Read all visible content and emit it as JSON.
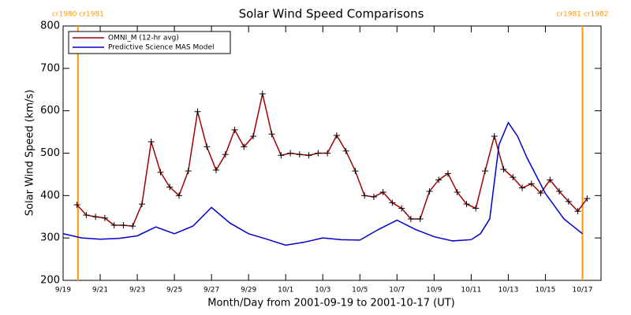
{
  "chart_data": {
    "type": "line",
    "title": "Solar Wind Speed Comparisons",
    "xlabel": "Month/Day from 2001-09-19 to 2001-10-17 (UT)",
    "ylabel": "Solar Wind Speed (km/s)",
    "xlim": [
      0,
      29
    ],
    "ylim": [
      200,
      800
    ],
    "yticks": [
      200,
      300,
      400,
      500,
      600,
      700,
      800
    ],
    "xticks": [
      {
        "value": 0,
        "label": "9/19"
      },
      {
        "value": 2,
        "label": "9/21"
      },
      {
        "value": 4,
        "label": "9/23"
      },
      {
        "value": 6,
        "label": "9/25"
      },
      {
        "value": 8,
        "label": "9/27"
      },
      {
        "value": 10,
        "label": "9/29"
      },
      {
        "value": 12,
        "label": "10/1"
      },
      {
        "value": 14,
        "label": "10/3"
      },
      {
        "value": 16,
        "label": "10/5"
      },
      {
        "value": 18,
        "label": "10/7"
      },
      {
        "value": 20,
        "label": "10/9"
      },
      {
        "value": 22,
        "label": "10/11"
      },
      {
        "value": 24,
        "label": "10/13"
      },
      {
        "value": 26,
        "label": "10/15"
      },
      {
        "value": 28,
        "label": "10/17"
      }
    ],
    "legend": "upper left",
    "annotations": [
      {
        "x": 0.8,
        "label": "cr1980 cr1981",
        "color": "#ff9900"
      },
      {
        "x": 28.0,
        "label": "cr1981 cr1982",
        "color": "#ff9900"
      }
    ],
    "series": [
      {
        "name": "OMNI_M (12-hr avg)",
        "color": "#a00000",
        "marker": "+",
        "x": [
          0.75,
          1.25,
          1.75,
          2.25,
          2.75,
          3.25,
          3.75,
          4.25,
          4.75,
          5.25,
          5.75,
          6.25,
          6.75,
          7.25,
          7.75,
          8.25,
          8.75,
          9.25,
          9.75,
          10.25,
          10.75,
          11.25,
          11.75,
          12.25,
          12.75,
          13.25,
          13.75,
          14.25,
          14.75,
          15.25,
          15.75,
          16.25,
          16.75,
          17.25,
          17.75,
          18.25,
          18.75,
          19.25,
          19.75,
          20.25,
          20.75,
          21.25,
          21.75,
          22.25,
          22.75,
          23.25,
          23.75,
          24.25,
          24.75,
          25.25,
          25.75,
          26.25,
          26.75,
          27.25,
          27.75,
          28.25
        ],
        "values": [
          378,
          354,
          350,
          347,
          330,
          330,
          328,
          380,
          527,
          455,
          420,
          400,
          458,
          598,
          515,
          460,
          497,
          555,
          515,
          540,
          640,
          545,
          495,
          500,
          497,
          495,
          500,
          500,
          542,
          505,
          458,
          400,
          397,
          408,
          383,
          370,
          345,
          345,
          410,
          437,
          452,
          408,
          380,
          370,
          458,
          540,
          462,
          443,
          418,
          428,
          406,
          437,
          410,
          386,
          363,
          393
        ]
      },
      {
        "name": "Predictive Science MAS Model",
        "color": "#0000cc",
        "x": [
          0,
          1,
          2,
          3,
          4,
          5,
          6,
          7,
          8,
          9,
          10,
          11,
          12,
          13,
          14,
          15,
          16,
          17,
          18,
          19,
          20,
          21,
          22,
          22.5,
          23,
          23.5,
          24,
          24.5,
          25,
          26,
          27,
          28
        ],
        "values": [
          310,
          300,
          297,
          299,
          305,
          326,
          310,
          328,
          372,
          335,
          310,
          297,
          283,
          290,
          300,
          296,
          295,
          320,
          342,
          320,
          303,
          293,
          296,
          310,
          345,
          520,
          572,
          540,
          490,
          405,
          345,
          310
        ]
      }
    ]
  }
}
